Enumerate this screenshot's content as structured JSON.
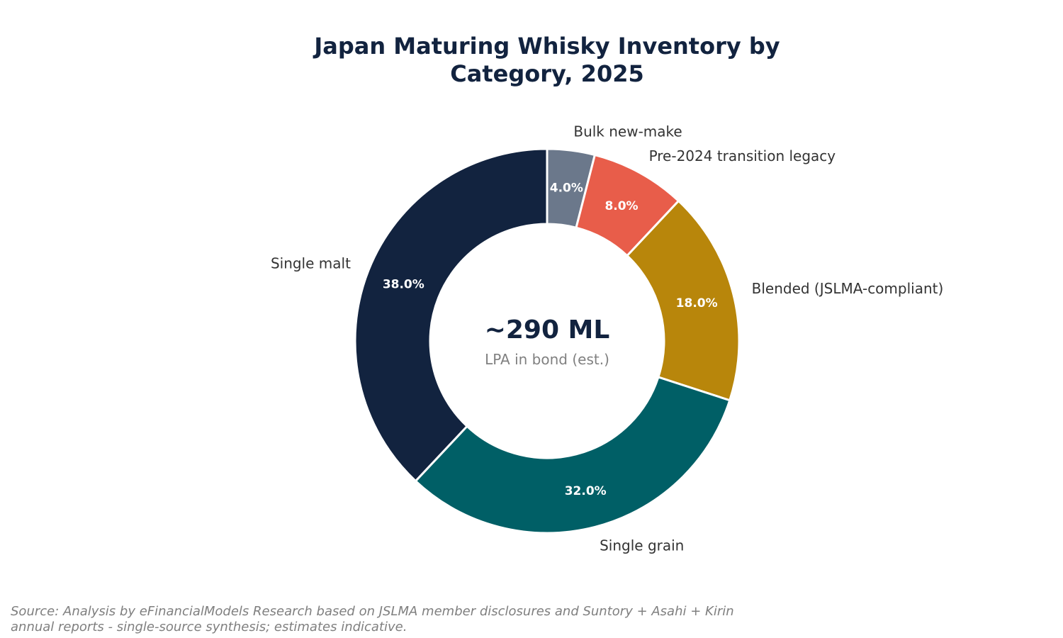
{
  "chart_data": {
    "type": "pie",
    "variant": "donut",
    "title_lines": [
      "Japan Maturing Whisky Inventory by",
      "Category, 2025"
    ],
    "categories": [
      "Bulk new-make",
      "Pre-2024 transition legacy",
      "Blended (JSLMA-compliant)",
      "Single grain",
      "Single malt"
    ],
    "values": [
      4.0,
      8.0,
      18.0,
      32.0,
      38.0
    ],
    "value_labels": [
      "4.0%",
      "8.0%",
      "18.0%",
      "32.0%",
      "38.0%"
    ],
    "colors": [
      "#6b788b",
      "#e85d4a",
      "#b8860b",
      "#005f66",
      "#12233f"
    ],
    "center_value": "~290 ML",
    "center_caption": "LPA in bond (est.)",
    "start": "top",
    "direction": "clockwise",
    "legend": "none"
  },
  "footer": {
    "source_lines": [
      "Source: Analysis by eFinancialModels Research based on JSLMA member disclosures and Suntory + Asahi + Kirin",
      "annual reports - single-source synthesis; estimates indicative."
    ]
  }
}
